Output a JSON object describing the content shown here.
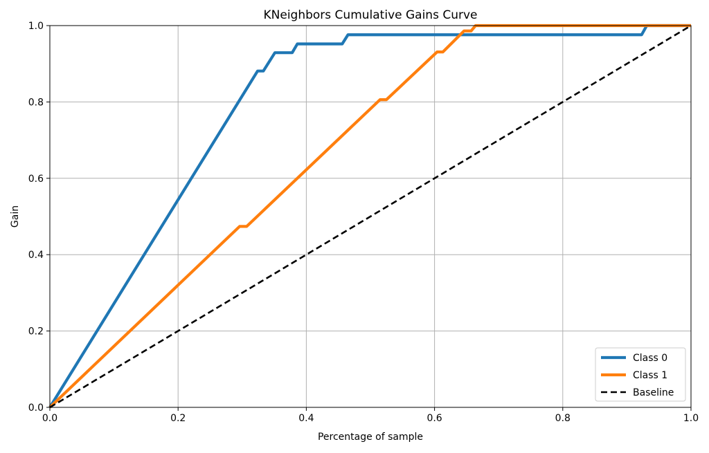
{
  "chart_data": {
    "type": "line",
    "title": "KNeighbors Cumulative Gains Curve",
    "xlabel": "Percentage of sample",
    "ylabel": "Gain",
    "xlim": [
      0,
      1
    ],
    "ylim": [
      0,
      1
    ],
    "xticks": [
      "0.0",
      "0.2",
      "0.4",
      "0.6",
      "0.8",
      "1.0"
    ],
    "yticks": [
      "0.0",
      "0.2",
      "0.4",
      "0.6",
      "0.8",
      "1.0"
    ],
    "grid": true,
    "legend_position": "bottom-right",
    "series": [
      {
        "name": "Class 0",
        "color": "#1f77b4",
        "style": "solid",
        "x": [
          0,
          0.324,
          0.333,
          0.351,
          0.378,
          0.386,
          0.456,
          0.465,
          0.923,
          0.931,
          1.0
        ],
        "y": [
          0,
          0.881,
          0.881,
          0.929,
          0.929,
          0.952,
          0.952,
          0.976,
          0.976,
          1.0,
          1.0
        ]
      },
      {
        "name": "Class 1",
        "color": "#ff7f0e",
        "style": "solid",
        "x": [
          0,
          0.296,
          0.307,
          0.515,
          0.525,
          0.604,
          0.613,
          0.646,
          0.657,
          0.664,
          1.0
        ],
        "y": [
          0,
          0.474,
          0.474,
          0.806,
          0.806,
          0.931,
          0.931,
          0.986,
          0.986,
          1.0,
          1.0
        ]
      },
      {
        "name": "Baseline",
        "color": "#000000",
        "style": "dashed",
        "x": [
          0,
          1
        ],
        "y": [
          0,
          1
        ]
      }
    ]
  }
}
